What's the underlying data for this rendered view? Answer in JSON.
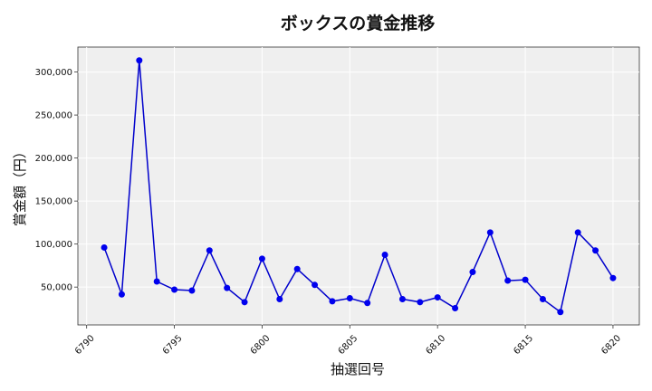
{
  "chart_data": {
    "type": "line",
    "title": "ボックスの賞金推移",
    "xlabel": "抽選回号",
    "ylabel": "賞金額（円）",
    "x": [
      6791,
      6792,
      6793,
      6794,
      6795,
      6796,
      6797,
      6798,
      6799,
      6800,
      6801,
      6802,
      6803,
      6804,
      6805,
      6806,
      6807,
      6808,
      6809,
      6810,
      6811,
      6812,
      6813,
      6814,
      6815,
      6816,
      6817,
      6818,
      6819,
      6820
    ],
    "y": [
      96000,
      41500,
      313500,
      56500,
      47000,
      46000,
      92500,
      49000,
      32500,
      83000,
      36000,
      71000,
      52500,
      33500,
      37000,
      31500,
      87500,
      36000,
      32500,
      38000,
      25500,
      67500,
      113500,
      57500,
      58500,
      36000,
      21000,
      113500,
      92500,
      60500
    ],
    "xlim": [
      6789.5,
      6821.5
    ],
    "ylim": [
      6000,
      329000
    ],
    "xticks": [
      6790,
      6795,
      6800,
      6805,
      6810,
      6815,
      6820
    ],
    "yticks": [
      50000,
      100000,
      150000,
      200000,
      250000,
      300000
    ],
    "xtick_labels": [
      "6790",
      "6795",
      "6800",
      "6805",
      "6810",
      "6815",
      "6820"
    ],
    "ytick_labels": [
      "50,000",
      "100,000",
      "150,000",
      "200,000",
      "250,000",
      "300,000"
    ],
    "grid": true,
    "colors": {
      "line": "#0000cc",
      "marker": "#0000ee",
      "plot_bg": "#efefef",
      "grid": "#ffffff"
    }
  }
}
